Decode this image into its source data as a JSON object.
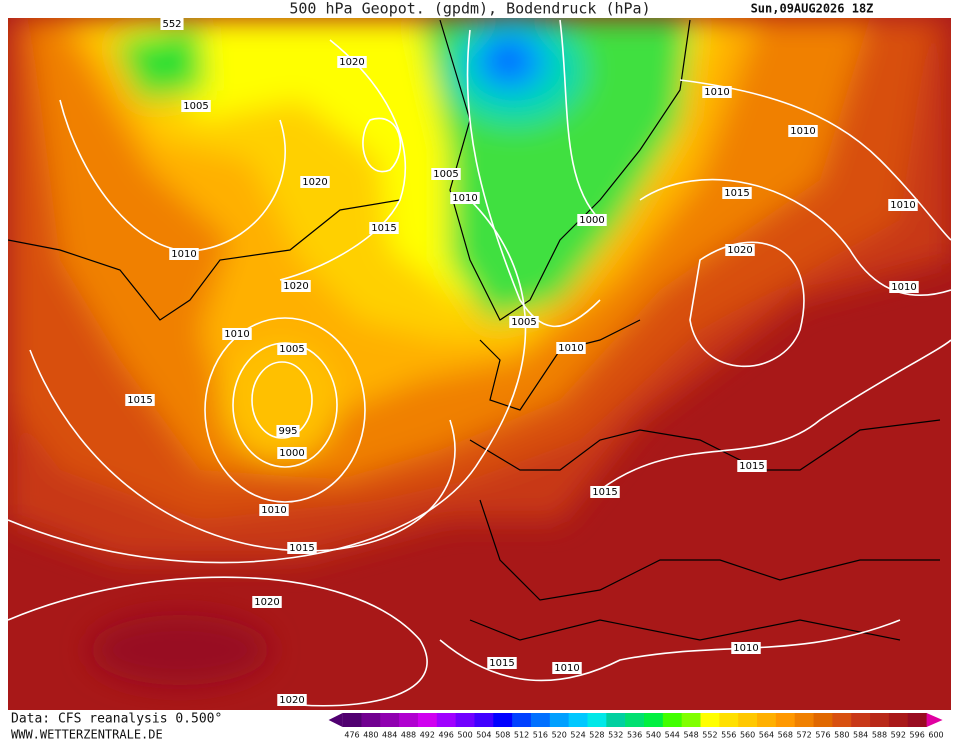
{
  "header": {
    "title": "500 hPa Geopot. (gpdm), Bodendruck (hPa)",
    "valid_time": "Sun,09AUG2026 18Z"
  },
  "isobar_labels": [
    552,
    1020,
    1005,
    1005,
    1010,
    1020,
    1015,
    1010,
    1020,
    1010,
    1005,
    1005,
    1010,
    995,
    1000,
    1015,
    1010,
    1015,
    1020,
    1020,
    1015,
    1010,
    1010,
    1015,
    1015,
    1010,
    1010,
    1015,
    1020,
    1010,
    1010,
    1000
  ],
  "footer": {
    "source": "Data: CFS reanalysis 0.500°",
    "website": "WWW.WETTERZENTRALE.DE"
  },
  "colorbar": {
    "ticks": [
      476,
      480,
      484,
      488,
      492,
      496,
      500,
      504,
      508,
      512,
      516,
      520,
      524,
      528,
      532,
      536,
      540,
      544,
      548,
      552,
      556,
      560,
      564,
      568,
      572,
      576,
      580,
      584,
      588,
      592,
      596,
      600
    ],
    "colors": [
      "#500070",
      "#700090",
      "#9000b0",
      "#b000d0",
      "#d000f0",
      "#a000ff",
      "#7000ff",
      "#4000ff",
      "#0000ff",
      "#0040ff",
      "#0070ff",
      "#00a0ff",
      "#00c8ff",
      "#00e8e8",
      "#00d0a0",
      "#00e070",
      "#00f040",
      "#40ff00",
      "#80ff00",
      "#ffff00",
      "#ffe000",
      "#ffc800",
      "#ffb000",
      "#ff9800",
      "#f08000",
      "#e06800",
      "#d85010",
      "#c83818",
      "#b82818",
      "#a81818",
      "#980c20",
      "#e000a0"
    ]
  }
}
